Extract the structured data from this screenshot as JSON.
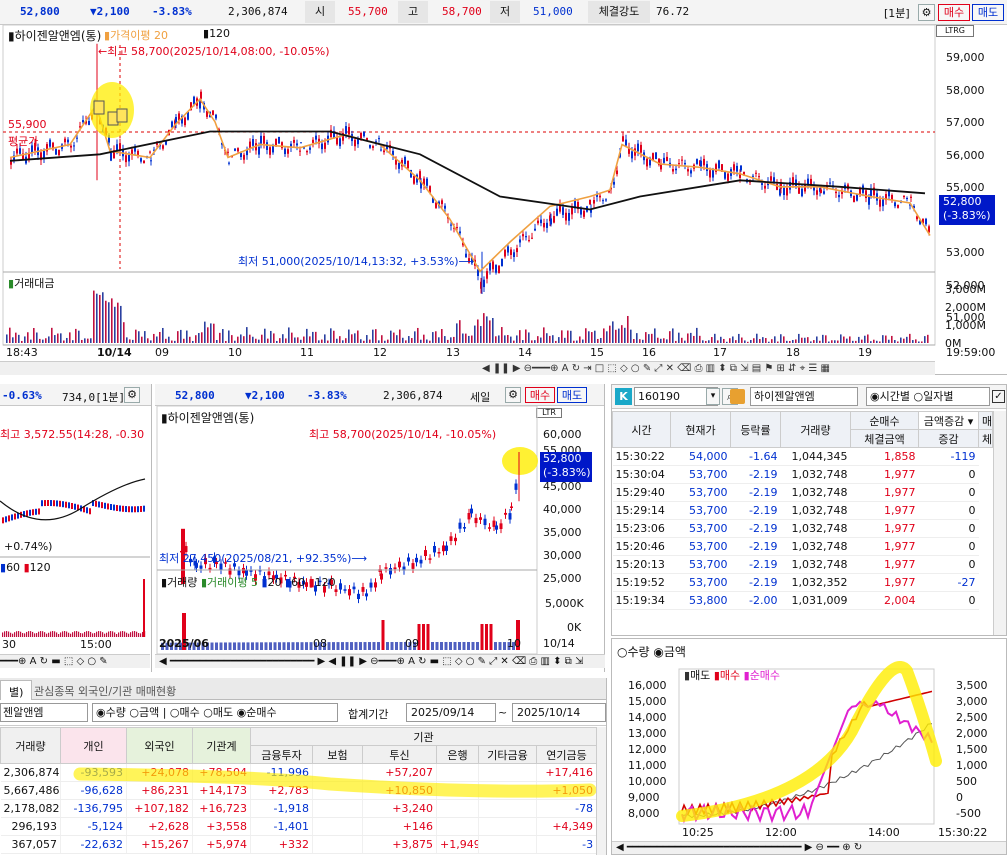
{
  "top": {
    "price": "52,800",
    "change": "▼2,100",
    "rate": "-3.83%",
    "volume": "2,306,874",
    "open_label": "시",
    "open": "55,700",
    "high_label": "고",
    "high": "58,700",
    "low_label": "저",
    "low": "51,000",
    "strength_label": "체결강도",
    "strength": "76.72",
    "period": "[1분]",
    "buy": "매수",
    "sell": "매도"
  },
  "main_chart": {
    "stock": "하이젠알앤엠(통)",
    "legend_price_avg": "가격이평 20",
    "legend_120": "120",
    "high_note": "←최고 58,700(2025/10/14,08:00, -10.05%)",
    "low_note": "최저 51,000(2025/10/14,13:32, +3.53%)⟶",
    "avg_price": "55,900",
    "avg_label": "평균가",
    "price_badge": "52,800",
    "price_badge_rate": "(-3.83%)",
    "yaxis": [
      "59,000",
      "58,000",
      "57,000",
      "56,000",
      "55,000",
      "54,000",
      "53,000",
      "52,000",
      "51,000"
    ],
    "vol_label": "거래대금",
    "vol_axis": [
      "3,000M",
      "2,000M",
      "1,000M",
      "0M"
    ],
    "xaxis": [
      "18:43",
      "10/14",
      "09",
      "10",
      "11",
      "12",
      "13",
      "14",
      "15",
      "16",
      "17",
      "18",
      "19"
    ],
    "time_end": "19:59:00",
    "tags": [
      "L",
      "T",
      "R",
      "G"
    ]
  },
  "left_panel": {
    "rate": "-0.63%",
    "value": "734,0[1분]",
    "high_note": "최고 3,572.55(14:28, -0.30",
    "low_note": "+0.74%)",
    "legend": [
      "60",
      "120"
    ],
    "times": [
      "30",
      "15:00"
    ]
  },
  "mid_chart": {
    "price": "52,800",
    "change": "▼2,100",
    "rate": "-3.83%",
    "volume": "2,306,874",
    "label": "세일",
    "buy": "매수",
    "sell": "매도",
    "stock": "하이젠알앤엠(통)",
    "high_note": "최고 58,700(2025/10/14, -10.05%)",
    "low_note": "최저 27,450(2025/08/21, +92.35%)⟶",
    "price_badge": "52,800",
    "price_badge_rate": "(-3.83%)",
    "yaxis": [
      "60,000",
      "55,000",
      "45,000",
      "40,000",
      "35,000",
      "30,000",
      "25,000"
    ],
    "vol_label": "거래량",
    "vol_avg": "거래이평 5",
    "vol_legend": [
      "20",
      "60",
      "120"
    ],
    "vol_axis": [
      "5,000K",
      "0K"
    ],
    "xaxis": [
      "2025/06",
      "08",
      "09",
      "10",
      "10/14"
    ]
  },
  "tick": {
    "code": "160190",
    "stock": "하이젠알앤엠",
    "radio_time": "시간별",
    "radio_day": "일자별",
    "headers": {
      "time": "시간",
      "price": "현재가",
      "rate": "등락률",
      "volume": "거래량",
      "net_buy": "순매수",
      "amount": "체결금액",
      "amount_sel": "금액증감",
      "change": "증감",
      "more": "매",
      "more2": "체"
    },
    "rows": [
      [
        "15:30:22",
        "54,000",
        "-1.64",
        "1,044,345",
        "1,858",
        "-119"
      ],
      [
        "15:30:04",
        "53,700",
        "-2.19",
        "1,032,748",
        "1,977",
        "0"
      ],
      [
        "15:29:40",
        "53,700",
        "-2.19",
        "1,032,748",
        "1,977",
        "0"
      ],
      [
        "15:29:14",
        "53,700",
        "-2.19",
        "1,032,748",
        "1,977",
        "0"
      ],
      [
        "15:23:06",
        "53,700",
        "-2.19",
        "1,032,748",
        "1,977",
        "0"
      ],
      [
        "15:20:46",
        "53,700",
        "-2.19",
        "1,032,748",
        "1,977",
        "0"
      ],
      [
        "15:20:13",
        "53,700",
        "-2.19",
        "1,032,748",
        "1,977",
        "0"
      ],
      [
        "15:19:52",
        "53,700",
        "-2.19",
        "1,032,352",
        "1,977",
        "-27"
      ],
      [
        "15:19:34",
        "53,800",
        "-2.00",
        "1,031,009",
        "2,004",
        "0"
      ]
    ]
  },
  "flow": {
    "radio_qty": "수량",
    "radio_amt": "금액",
    "legend_sell": "매도",
    "legend_buy": "매수",
    "legend_net": "순매수",
    "left_axis": [
      "16,000",
      "15,000",
      "14,000",
      "13,000",
      "12,000",
      "11,000",
      "10,000",
      "9,000",
      "8,000"
    ],
    "right_axis": [
      "3,500",
      "3,000",
      "2,500",
      "2,000",
      "1,500",
      "1,000",
      "500",
      "0",
      "-500"
    ],
    "xaxis": [
      "10:25",
      "12:00",
      "14:00"
    ],
    "time_end": "15:30:22"
  },
  "bottom": {
    "tab1": "별)",
    "tab2": "관심종목 외국인/기관 매매현황",
    "stock": "젠알앤엠",
    "radios": [
      "수량",
      "금액",
      "매수",
      "매도",
      "순매수"
    ],
    "period_label": "합계기간",
    "date_from": "2025/09/14",
    "tilde": "~",
    "date_to": "2025/10/14",
    "header_group": "기관",
    "headers": [
      "거래량",
      "개인",
      "외국인",
      "기관계",
      "금융투자",
      "보험",
      "투신",
      "은행",
      "기타금융",
      "연기금등"
    ],
    "rows": [
      [
        "2,306,874",
        "-93,593",
        "+24,078",
        "+78,504",
        "-11,996",
        "",
        "+57,207",
        "",
        "",
        "+17,416"
      ],
      [
        "5,667,486",
        "-96,628",
        "+86,231",
        "+14,173",
        "+2,783",
        "",
        "+10,850",
        "",
        "",
        "+1,050"
      ],
      [
        "2,178,082",
        "-136,795",
        "+107,182",
        "+16,723",
        "-1,918",
        "",
        "+3,240",
        "",
        "",
        "-78"
      ],
      [
        "296,193",
        "-5,124",
        "+2,628",
        "+3,558",
        "-1,401",
        "",
        "+146",
        "",
        "",
        "+4,349"
      ],
      [
        "367,057",
        "-22,632",
        "+15,267",
        "+5,974",
        "+332",
        "",
        "+3,875",
        "+1,949",
        "",
        "-3"
      ]
    ]
  },
  "colors": {
    "up": "#e0001a",
    "down": "#0030d0",
    "highlight": "#ffee00",
    "ma_orange": "#f0a040",
    "ma_black": "#111111",
    "badge": "#0018c8"
  }
}
